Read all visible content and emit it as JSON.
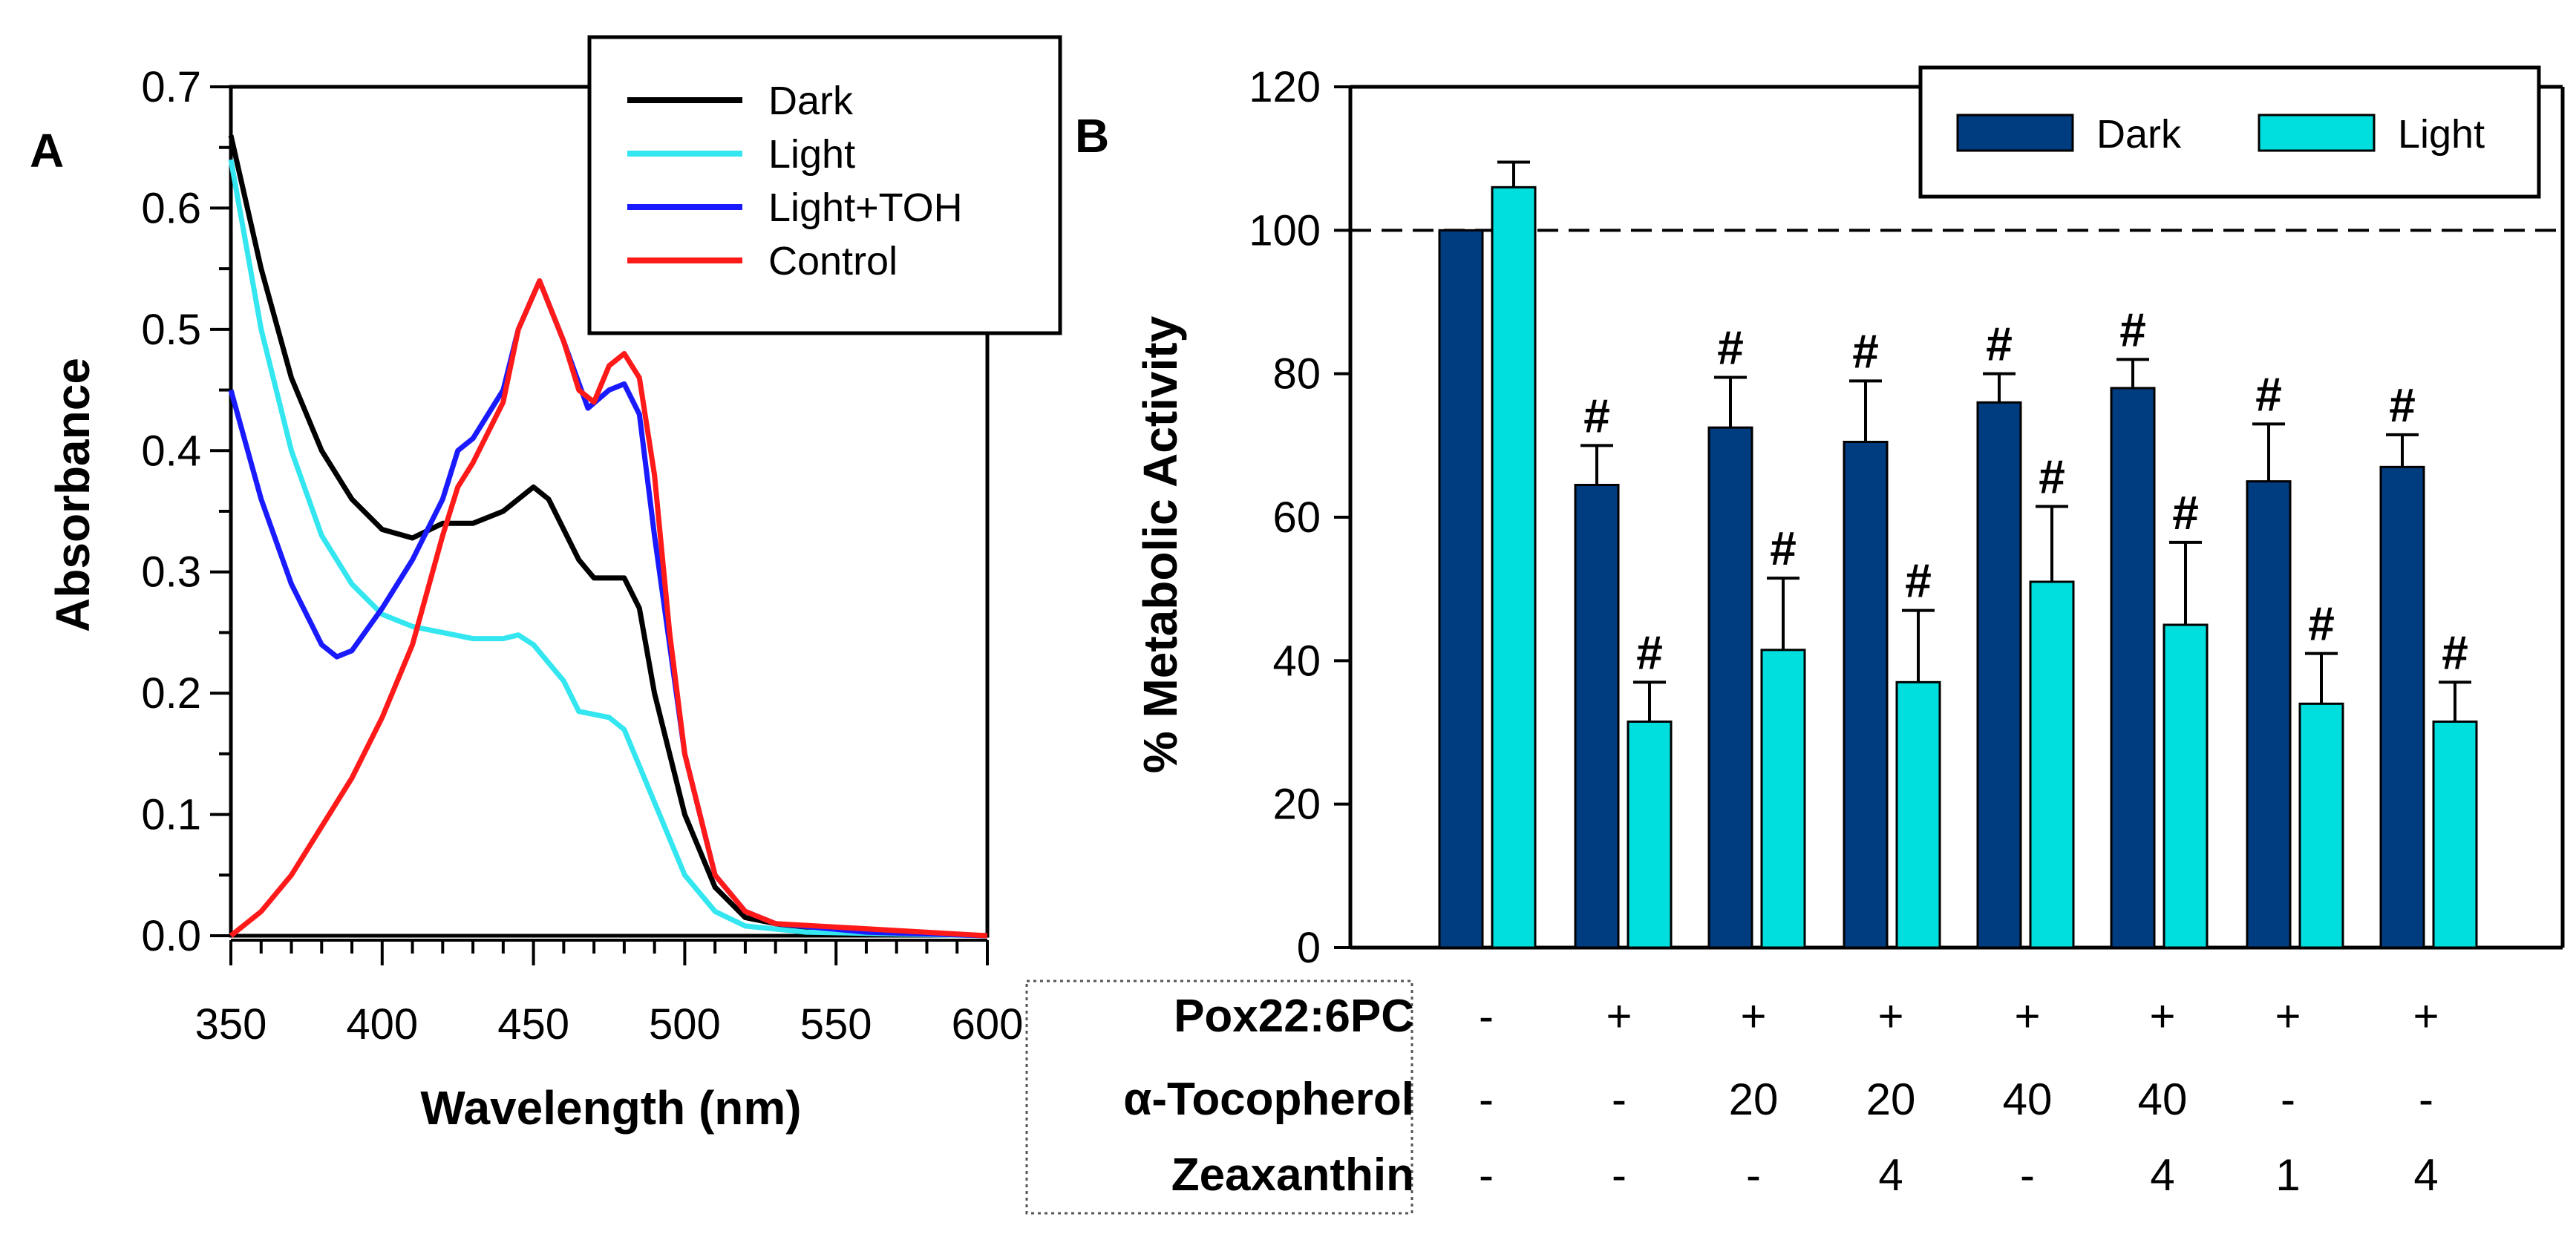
{
  "chart_data": [
    {
      "type": "line",
      "panel_label": "A",
      "xlabel": "Wavelength (nm)",
      "ylabel": "Absorbance",
      "xlim": [
        350,
        600
      ],
      "ylim": [
        0,
        0.7
      ],
      "xticks": [
        "350",
        "400",
        "450",
        "500",
        "550",
        "600"
      ],
      "yticks": [
        "0.0",
        "0.1",
        "0.2",
        "0.3",
        "0.4",
        "0.5",
        "0.6",
        "0.7"
      ],
      "legend_position": "top-right",
      "series": [
        {
          "name": "Dark",
          "color": "#000000",
          "x": [
            350,
            360,
            370,
            380,
            390,
            400,
            410,
            420,
            430,
            440,
            450,
            455,
            465,
            470,
            480,
            485,
            490,
            500,
            510,
            520,
            540,
            600
          ],
          "y": [
            0.66,
            0.55,
            0.46,
            0.4,
            0.36,
            0.335,
            0.328,
            0.34,
            0.34,
            0.35,
            0.37,
            0.36,
            0.31,
            0.295,
            0.295,
            0.27,
            0.2,
            0.1,
            0.04,
            0.015,
            0.005,
            0
          ]
        },
        {
          "name": "Light",
          "color": "#33e6f0",
          "x": [
            350,
            360,
            370,
            380,
            390,
            400,
            410,
            420,
            430,
            440,
            445,
            450,
            460,
            465,
            475,
            480,
            490,
            500,
            510,
            520,
            540,
            600
          ],
          "y": [
            0.64,
            0.5,
            0.4,
            0.33,
            0.29,
            0.265,
            0.255,
            0.25,
            0.245,
            0.245,
            0.248,
            0.24,
            0.21,
            0.185,
            0.18,
            0.17,
            0.11,
            0.05,
            0.02,
            0.008,
            0.003,
            0
          ]
        },
        {
          "name": "Light+TOH",
          "color": "#1a1aff",
          "x": [
            350,
            360,
            370,
            380,
            385,
            390,
            400,
            410,
            420,
            425,
            430,
            440,
            445,
            452,
            460,
            468,
            475,
            480,
            485,
            490,
            500,
            510,
            520,
            530,
            560,
            600
          ],
          "y": [
            0.45,
            0.36,
            0.29,
            0.24,
            0.23,
            0.235,
            0.27,
            0.31,
            0.36,
            0.4,
            0.41,
            0.45,
            0.5,
            0.54,
            0.49,
            0.435,
            0.45,
            0.455,
            0.43,
            0.33,
            0.15,
            0.05,
            0.02,
            0.01,
            0.003,
            0
          ]
        },
        {
          "name": "Control",
          "color": "#ff1a1a",
          "x": [
            350,
            360,
            370,
            380,
            390,
            400,
            410,
            420,
            425,
            430,
            440,
            445,
            452,
            460,
            465,
            470,
            475,
            480,
            485,
            490,
            495,
            500,
            510,
            520,
            530,
            600
          ],
          "y": [
            0,
            0.02,
            0.05,
            0.09,
            0.13,
            0.18,
            0.24,
            0.33,
            0.37,
            0.39,
            0.44,
            0.5,
            0.54,
            0.49,
            0.45,
            0.44,
            0.47,
            0.48,
            0.46,
            0.38,
            0.25,
            0.15,
            0.05,
            0.02,
            0.01,
            0
          ]
        }
      ]
    },
    {
      "type": "bar",
      "panel_label": "B",
      "ylabel": "% Metabolic Activity",
      "ylim": [
        0,
        120
      ],
      "yticks": [
        "0",
        "20",
        "40",
        "60",
        "80",
        "100",
        "120"
      ],
      "reference_line": 100,
      "legend_position": "top-right",
      "significance_marker": "#",
      "series": [
        {
          "name": "Dark",
          "color": "#003c80",
          "values": [
            100,
            64.5,
            72.5,
            70.5,
            76,
            78,
            65,
            67
          ],
          "errors": [
            0,
            5.5,
            7,
            8.5,
            4,
            4,
            8,
            4.5
          ],
          "significant": [
            false,
            true,
            true,
            true,
            true,
            true,
            true,
            true
          ]
        },
        {
          "name": "Light",
          "color": "#00dede",
          "values": [
            106,
            31.5,
            41.5,
            37,
            51,
            45,
            34,
            31.5
          ],
          "errors": [
            3.5,
            5.5,
            10,
            10,
            10.5,
            11.5,
            7,
            5.5
          ],
          "significant": [
            false,
            true,
            true,
            true,
            true,
            true,
            true,
            true
          ]
        }
      ],
      "conditions": [
        {
          "label": "Pox22:6PC",
          "values": [
            "-",
            "+",
            "+",
            "+",
            "+",
            "+",
            "+",
            "+"
          ]
        },
        {
          "label": "α-Tocopherol",
          "values": [
            "-",
            "-",
            "20",
            "20",
            "40",
            "40",
            "-",
            "-"
          ]
        },
        {
          "label": "Zeaxanthin",
          "values": [
            "-",
            "-",
            "-",
            "4",
            "-",
            "4",
            "1",
            "4"
          ]
        }
      ]
    }
  ]
}
